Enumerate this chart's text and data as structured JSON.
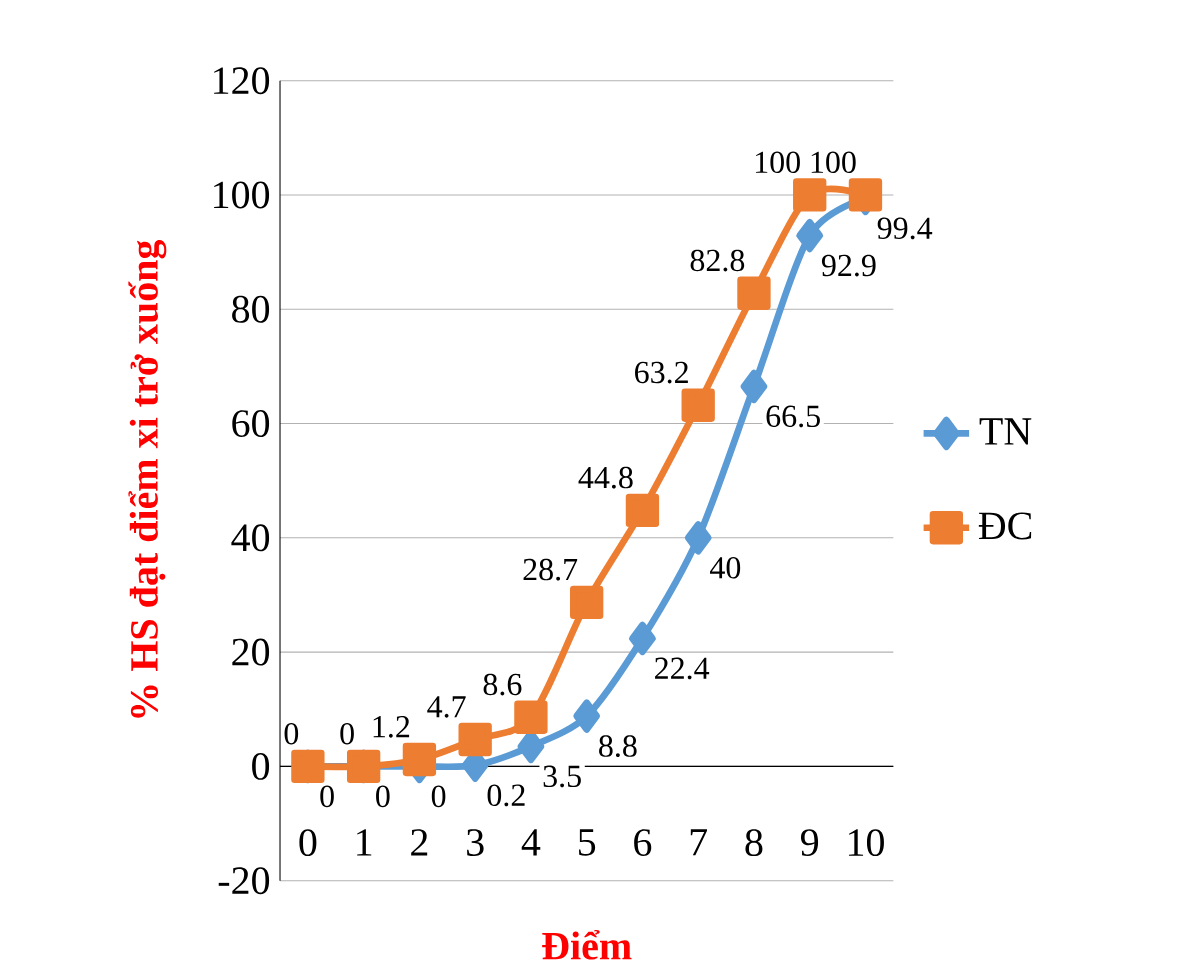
{
  "chart_data": {
    "type": "line",
    "xlabel": "Điểm",
    "ylabel": "% HS đạt điểm xi trở xuống",
    "categories": [
      "0",
      "1",
      "2",
      "3",
      "4",
      "5",
      "6",
      "7",
      "8",
      "9",
      "10"
    ],
    "series": [
      {
        "name": "TN",
        "color": "#5b9bd5",
        "marker": "diamond",
        "values": [
          0,
          0,
          0,
          0.2,
          3.5,
          8.8,
          22.4,
          40,
          66.5,
          92.9,
          99.4
        ]
      },
      {
        "name": "ĐC",
        "color": "#ed7d31",
        "marker": "square",
        "values": [
          0,
          0,
          1.2,
          4.7,
          8.6,
          28.7,
          44.8,
          63.2,
          82.8,
          100,
          100
        ]
      }
    ],
    "ylim": [
      -20,
      120
    ],
    "yticks": [
      -20,
      0,
      20,
      40,
      60,
      80,
      100,
      120
    ],
    "grid": "y",
    "legend": "right",
    "data_labels": true
  }
}
